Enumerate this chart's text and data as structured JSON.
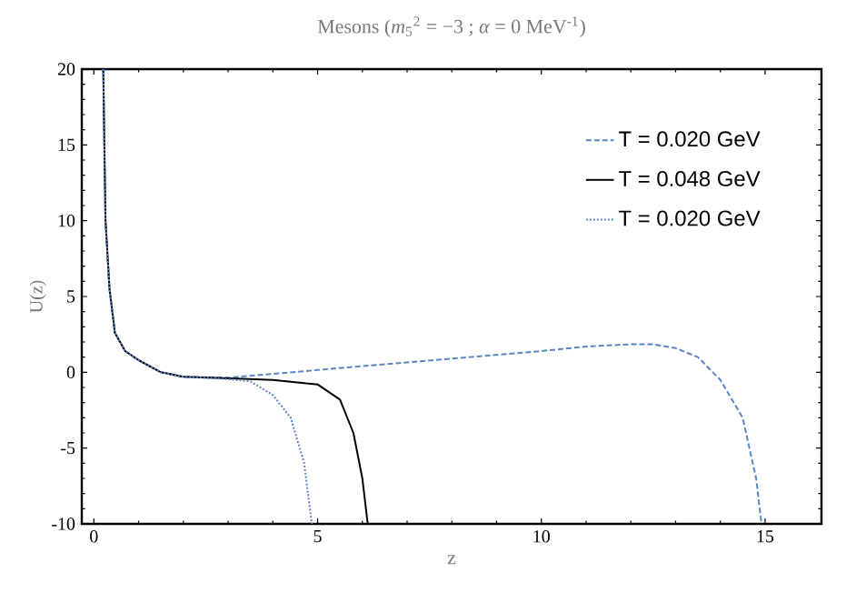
{
  "chart_data": {
    "type": "line",
    "title": "Mesons (*m*$_{5}$$^{2}$ = −3 ; *α* = 0 MeV$^{-1}$)",
    "xlabel": "z",
    "ylabel": "U(z)",
    "xlim": [
      -0.27,
      16.26
    ],
    "ylim": [
      -10,
      20
    ],
    "xticks": [
      0,
      5,
      10,
      15
    ],
    "yticks": [
      -10,
      -5,
      0,
      5,
      10,
      15,
      20
    ],
    "legend": "top right",
    "grid": false,
    "series": [
      {
        "name": "T = 0.020 GeV",
        "color": "#5b84c4",
        "line_style": "dashed",
        "x": [
          0.21,
          0.26,
          0.35,
          0.47,
          0.7,
          1.0,
          1.5,
          2,
          3,
          4,
          5,
          6,
          8,
          10,
          11,
          12,
          12.5,
          13,
          13.5,
          14,
          14.5,
          14.8,
          14.92
        ],
        "values": [
          20,
          10,
          5.5,
          2.6,
          1.4,
          0.8,
          0.0,
          -0.3,
          -0.35,
          -0.1,
          0.15,
          0.4,
          0.9,
          1.4,
          1.7,
          1.85,
          1.85,
          1.6,
          1.0,
          -0.5,
          -3,
          -7,
          -10
        ]
      },
      {
        "name": "T = 0.048 GeV",
        "color": "#000000",
        "line_style": "solid",
        "x": [
          0.21,
          0.26,
          0.35,
          0.47,
          0.7,
          1.0,
          1.5,
          2,
          3,
          4,
          5,
          5.5,
          5.8,
          6.0,
          6.12
        ],
        "values": [
          20,
          10,
          5.5,
          2.6,
          1.4,
          0.8,
          0.0,
          -0.3,
          -0.4,
          -0.5,
          -0.8,
          -1.8,
          -4,
          -7,
          -10
        ]
      },
      {
        "name": "T = 0.020 GeV",
        "color": "#5b84c4",
        "line_style": "dotted",
        "x": [
          0.21,
          0.26,
          0.35,
          0.47,
          0.7,
          1.0,
          1.5,
          2,
          3,
          3.5,
          4,
          4.4,
          4.7,
          4.87
        ],
        "values": [
          20,
          10,
          5.5,
          2.6,
          1.4,
          0.8,
          0.0,
          -0.3,
          -0.45,
          -0.6,
          -1.5,
          -3,
          -6,
          -10
        ]
      }
    ]
  }
}
